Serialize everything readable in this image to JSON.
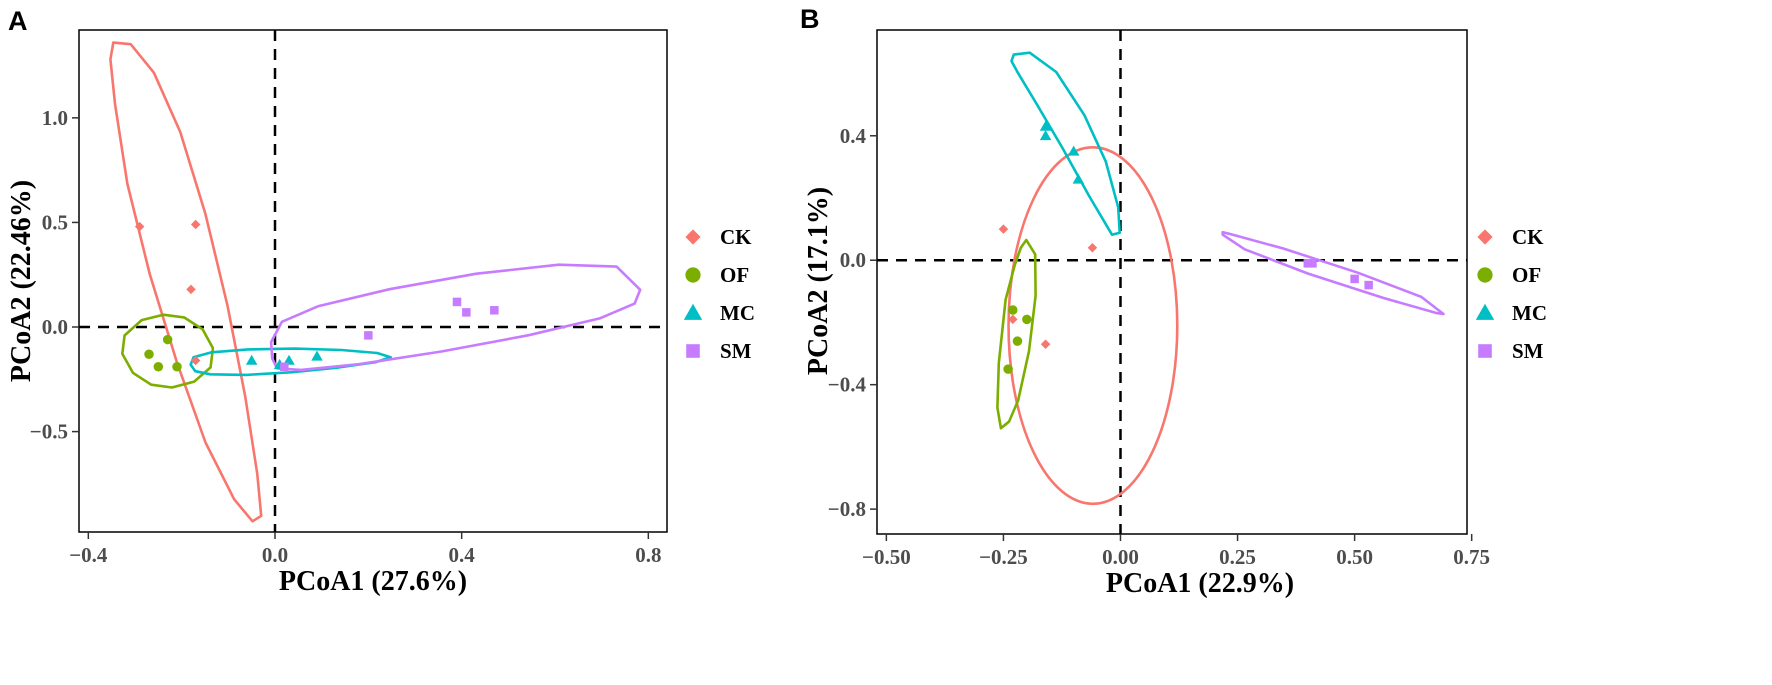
{
  "groups": [
    {
      "name": "CK",
      "color": "#f8766d",
      "marker": "diamond"
    },
    {
      "name": "OF",
      "color": "#7cae00",
      "marker": "circle"
    },
    {
      "name": "MC",
      "color": "#00bfc4",
      "marker": "triangle"
    },
    {
      "name": "SM",
      "color": "#c77cff",
      "marker": "square"
    }
  ],
  "chart_data": [
    {
      "panel": "A",
      "type": "scatter",
      "xlabel": "PCoA1 (27.6%)",
      "ylabel": "PCoA2 (22.46%)",
      "xlim": [
        -0.42,
        0.84
      ],
      "ylim": [
        -0.98,
        1.42
      ],
      "xticks": [
        {
          "v": -0.4,
          "label": "−0.4"
        },
        {
          "v": 0.0,
          "label": "0.0"
        },
        {
          "v": 0.4,
          "label": "0.4"
        },
        {
          "v": 0.8,
          "label": "0.8"
        }
      ],
      "yticks": [
        {
          "v": -0.5,
          "label": "−0.5"
        },
        {
          "v": 0.0,
          "label": "0.0"
        },
        {
          "v": 0.5,
          "label": "0.5"
        },
        {
          "v": 1.0,
          "label": "1.0"
        }
      ],
      "legend": [
        "CK",
        "OF",
        "MC",
        "SM"
      ],
      "series": [
        {
          "name": "CK",
          "points": [
            [
              -0.29,
              0.48
            ],
            [
              -0.17,
              0.49
            ],
            [
              -0.18,
              0.18
            ],
            [
              -0.17,
              -0.16
            ]
          ]
        },
        {
          "name": "OF",
          "points": [
            [
              -0.27,
              -0.13
            ],
            [
              -0.23,
              -0.06
            ],
            [
              -0.25,
              -0.19
            ],
            [
              -0.21,
              -0.19
            ]
          ]
        },
        {
          "name": "MC",
          "points": [
            [
              -0.05,
              -0.16
            ],
            [
              0.03,
              -0.16
            ],
            [
              0.09,
              -0.14
            ],
            [
              0.01,
              -0.18
            ]
          ]
        },
        {
          "name": "SM",
          "points": [
            [
              0.2,
              -0.04
            ],
            [
              0.39,
              0.12
            ],
            [
              0.41,
              0.07
            ],
            [
              0.47,
              0.08
            ],
            [
              0.02,
              -0.19
            ]
          ]
        }
      ],
      "ellipses": [
        {
          "name": "CK",
          "polygon": [
            [
              -0.3464,
              1.36
            ],
            [
              -0.3092,
              1.352
            ],
            [
              -0.2594,
              1.216
            ],
            [
              -0.2029,
              0.932
            ],
            [
              -0.1491,
              0.541
            ],
            [
              -0.1016,
              0.1
            ],
            [
              -0.0637,
              -0.334
            ],
            [
              -0.038,
              -0.703
            ],
            [
              -0.0296,
              -0.903
            ],
            [
              -0.0483,
              -0.929
            ],
            [
              -0.0877,
              -0.823
            ],
            [
              -0.149,
              -0.552
            ],
            [
              -0.21,
              -0.17
            ],
            [
              -0.2683,
              0.252
            ],
            [
              -0.3165,
              0.686
            ],
            [
              -0.3428,
              1.067
            ],
            [
              -0.3527,
              1.28
            ]
          ]
        },
        {
          "name": "OF",
          "polygon": [
            [
              -0.2393,
              0.059
            ],
            [
              -0.1947,
              0.046
            ],
            [
              -0.1552,
              -0.011
            ],
            [
              -0.133,
              -0.101
            ],
            [
              -0.1381,
              -0.193
            ],
            [
              -0.1731,
              -0.261
            ],
            [
              -0.2209,
              -0.289
            ],
            [
              -0.2653,
              -0.276
            ],
            [
              -0.3046,
              -0.219
            ],
            [
              -0.3272,
              -0.128
            ],
            [
              -0.3223,
              -0.04
            ],
            [
              -0.2856,
              0.033
            ]
          ]
        },
        {
          "name": "MC",
          "polygon": [
            [
              -0.1707,
              -0.211
            ],
            [
              -0.1389,
              -0.226
            ],
            [
              -0.0622,
              -0.229
            ],
            [
              0.0375,
              -0.216
            ],
            [
              0.1373,
              -0.193
            ],
            [
              0.2152,
              -0.168
            ],
            [
              0.2479,
              -0.145
            ],
            [
              0.2188,
              -0.124
            ],
            [
              0.1424,
              -0.11
            ],
            [
              0.0418,
              -0.103
            ],
            [
              -0.0581,
              -0.107
            ],
            [
              -0.1357,
              -0.121
            ],
            [
              -0.1746,
              -0.145
            ],
            [
              -0.1807,
              -0.18
            ]
          ]
        },
        {
          "name": "SM",
          "polygon": [
            [
              0.0046,
              -0.198
            ],
            [
              0.056,
              -0.205
            ],
            [
              0.1798,
              -0.178
            ],
            [
              0.3565,
              -0.117
            ],
            [
              0.5439,
              -0.039
            ],
            [
              0.6957,
              0.041
            ],
            [
              0.7706,
              0.112
            ],
            [
              0.7826,
              0.178
            ],
            [
              0.7321,
              0.289
            ],
            [
              0.6081,
              0.298
            ],
            [
              0.4316,
              0.255
            ],
            [
              0.2456,
              0.181
            ],
            [
              0.0932,
              0.1
            ],
            [
              0.0148,
              0.025
            ],
            [
              -0.0084,
              -0.072
            ],
            [
              -0.0059,
              -0.15
            ]
          ]
        }
      ]
    },
    {
      "panel": "B",
      "type": "scatter",
      "xlabel": "PCoA1 (22.9%)",
      "ylabel": "PCoA2 (17.1%)",
      "xlim": [
        -0.52,
        0.74
      ],
      "ylim": [
        -0.88,
        0.74
      ],
      "xticks": [
        {
          "v": -0.5,
          "label": "−0.50"
        },
        {
          "v": -0.25,
          "label": "−0.25"
        },
        {
          "v": 0.0,
          "label": "0.00"
        },
        {
          "v": 0.25,
          "label": "0.25"
        },
        {
          "v": 0.5,
          "label": "0.50"
        },
        {
          "v": 0.75,
          "label": "0.75"
        }
      ],
      "yticks": [
        {
          "v": -0.8,
          "label": "−0.8"
        },
        {
          "v": -0.4,
          "label": "−0.4"
        },
        {
          "v": 0.0,
          "label": "0.0"
        },
        {
          "v": 0.4,
          "label": "0.4"
        }
      ],
      "legend": [
        "CK",
        "OF",
        "MC",
        "SM"
      ],
      "series": [
        {
          "name": "CK",
          "points": [
            [
              -0.25,
              0.1
            ],
            [
              -0.06,
              0.04
            ],
            [
              -0.23,
              -0.19
            ],
            [
              -0.16,
              -0.27
            ]
          ]
        },
        {
          "name": "OF",
          "points": [
            [
              -0.23,
              -0.16
            ],
            [
              -0.22,
              -0.26
            ],
            [
              -0.2,
              -0.19
            ],
            [
              -0.24,
              -0.35
            ]
          ]
        },
        {
          "name": "MC",
          "points": [
            [
              -0.16,
              0.43
            ],
            [
              -0.16,
              0.4
            ],
            [
              -0.1,
              0.35
            ],
            [
              -0.09,
              0.26
            ]
          ]
        },
        {
          "name": "SM",
          "points": [
            [
              0.4,
              -0.01
            ],
            [
              0.41,
              -0.01
            ],
            [
              0.5,
              -0.06
            ],
            [
              0.53,
              -0.08
            ]
          ]
        }
      ],
      "ellipses": [
        {
          "name": "CK",
          "cx": -0.0589,
          "cy": -0.21,
          "rx": 0.1802,
          "ry": 0.573,
          "rot": 0
        },
        {
          "name": "OF",
          "polygon": [
            [
              -0.2012,
              0.065
            ],
            [
              -0.1821,
              0.019
            ],
            [
              -0.1814,
              -0.114
            ],
            [
              -0.1954,
              -0.292
            ],
            [
              -0.2184,
              -0.45
            ],
            [
              -0.238,
              -0.519
            ],
            [
              -0.2553,
              -0.54
            ],
            [
              -0.2628,
              -0.474
            ],
            [
              -0.2598,
              -0.331
            ],
            [
              -0.2454,
              -0.127
            ],
            [
              -0.2257,
              -0.015
            ],
            [
              -0.213,
              0.04
            ]
          ]
        },
        {
          "name": "MC",
          "polygon": [
            [
              -0.2278,
              0.661
            ],
            [
              -0.1938,
              0.667
            ],
            [
              -0.1374,
              0.605
            ],
            [
              -0.077,
              0.466
            ],
            [
              -0.0314,
              0.317
            ],
            [
              -0.0049,
              0.17
            ],
            [
              -0.0016,
              0.088
            ],
            [
              -0.0182,
              0.082
            ],
            [
              -0.0669,
              0.206
            ],
            [
              -0.1241,
              0.361
            ],
            [
              -0.1785,
              0.501
            ],
            [
              -0.2197,
              0.604
            ],
            [
              -0.2327,
              0.64
            ]
          ]
        },
        {
          "name": "SM",
          "polygon": [
            [
              0.218,
              0.09
            ],
            [
              0.2321,
              0.085
            ],
            [
              0.3468,
              0.038
            ],
            [
              0.5069,
              -0.04
            ],
            [
              0.6425,
              -0.118
            ],
            [
              0.6898,
              -0.173
            ],
            [
              0.6754,
              -0.17
            ],
            [
              0.561,
              -0.121
            ],
            [
              0.4006,
              -0.043
            ],
            [
              0.2652,
              0.035
            ],
            [
              0.2183,
              0.082
            ]
          ]
        }
      ]
    }
  ]
}
